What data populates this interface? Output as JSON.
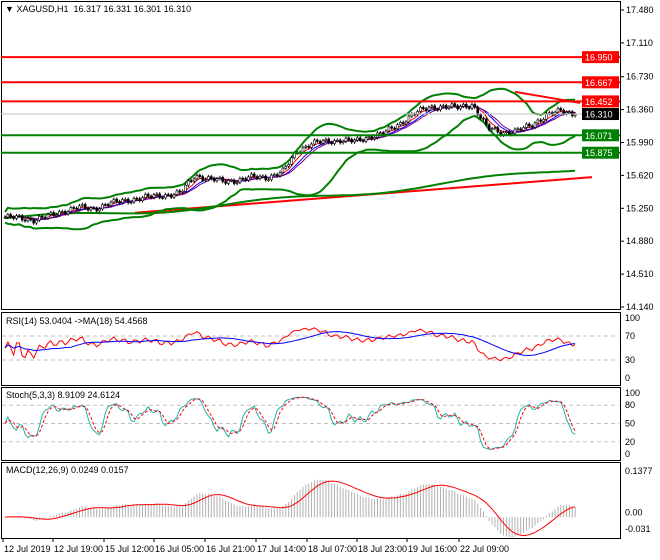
{
  "header": {
    "symbol": "XAGUSD,H1",
    "open": "16.317",
    "high": "16.331",
    "low": "16.301",
    "close": "16.310"
  },
  "price_axis": [
    "17.480",
    "17.110",
    "16.730",
    "16.360",
    "15.990",
    "15.620",
    "15.250",
    "14.880",
    "14.510",
    "14.140"
  ],
  "levels": [
    {
      "value": 16.95,
      "label": "16.950",
      "color": "#ff0000"
    },
    {
      "value": 16.667,
      "label": "16.667",
      "color": "#ff0000"
    },
    {
      "value": 16.452,
      "label": "16.452",
      "color": "#ff0000"
    },
    {
      "value": 16.31,
      "label": "16.310",
      "color": "#000000"
    },
    {
      "value": 16.071,
      "label": "16.071",
      "color": "#008000"
    },
    {
      "value": 15.875,
      "label": "15.875",
      "color": "#008000"
    }
  ],
  "time_axis": [
    "12 Jul 2019",
    "12 Jul 19:00",
    "15 Jul 12:00",
    "16 Jul 05:00",
    "16 Jul 21:00",
    "17 Jul 14:00",
    "18 Jul 07:00",
    "18 Jul 23:00",
    "19 Jul 16:00",
    "22 Jul 09:00"
  ],
  "rsi": {
    "label": "RSI(14) 53.0404  ->MA(18) 54.4568",
    "axis": [
      "100",
      "70",
      "30",
      "0"
    ]
  },
  "stoch": {
    "label": "Stoch(5,3,3) 8.9109 24.6124",
    "axis": [
      "100",
      "80",
      "50",
      "20",
      "0"
    ]
  },
  "macd": {
    "label": "MACD(12,26,9) 0.0249 0.0157",
    "axis": [
      "0.1377",
      "0.00",
      "-0.031"
    ]
  },
  "chart_data": {
    "type": "candlestick",
    "price_range": [
      14.14,
      17.48
    ],
    "close_keypoints": [
      15.15,
      15.14,
      15.12,
      15.16,
      15.22,
      15.26,
      15.24,
      15.3,
      15.33,
      15.36,
      15.38,
      15.4,
      15.42,
      15.62,
      15.58,
      15.55,
      15.57,
      15.6,
      15.6,
      15.66,
      15.9,
      15.98,
      16.0,
      16.02,
      16.0,
      16.06,
      16.1,
      16.2,
      16.32,
      16.38,
      16.4,
      16.38,
      16.42,
      16.15,
      16.1,
      16.12,
      16.18,
      16.3,
      16.34,
      16.31
    ],
    "long_ma_red": [
      15.2,
      15.6
    ],
    "long_ma_green": [
      15.14,
      15.7
    ],
    "trendline": [
      16.56,
      16.36
    ]
  }
}
